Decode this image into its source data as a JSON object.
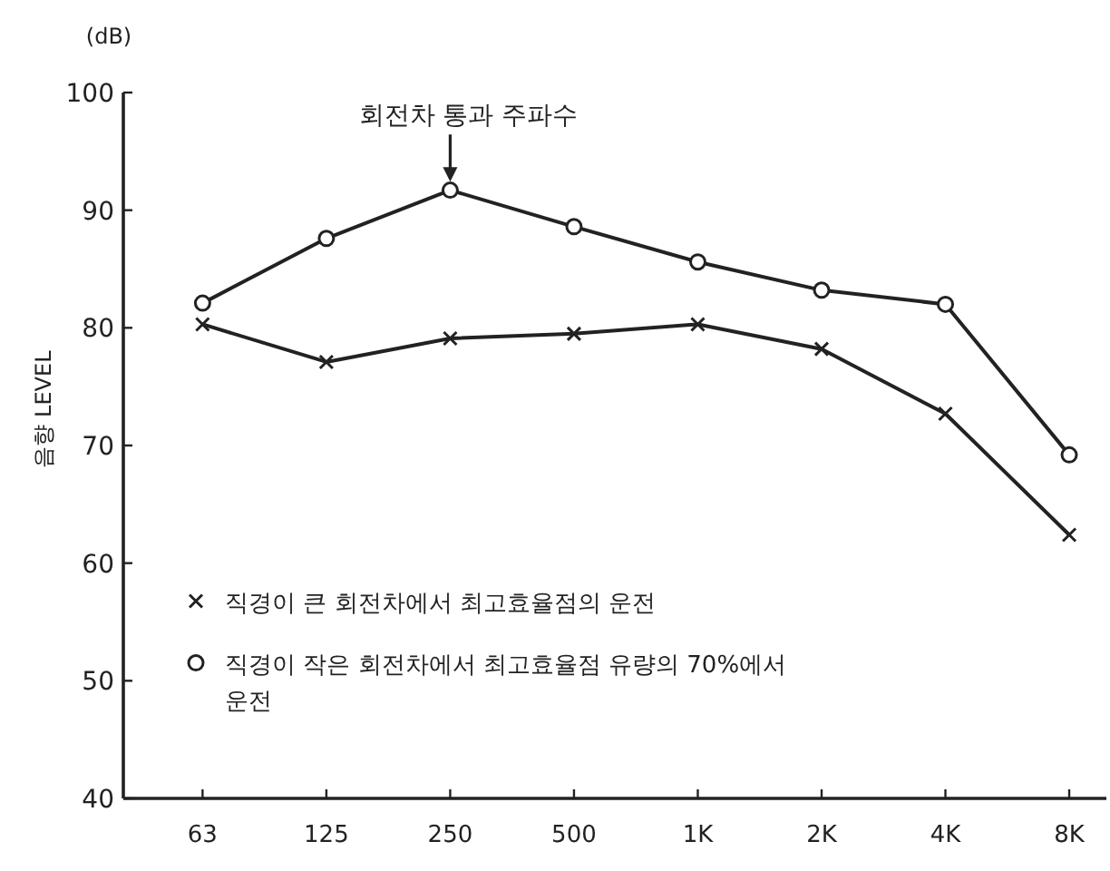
{
  "chart_data": {
    "type": "line",
    "ylabel": "음향 LEVEL",
    "categories": [
      "63",
      "125",
      "250",
      "500",
      "1K",
      "2K",
      "4K",
      "8K"
    ],
    "ylim": [
      40,
      100
    ],
    "yticks": [
      40,
      50,
      60,
      70,
      80,
      90,
      100
    ],
    "grid": false,
    "legend": "bottom left",
    "annotations": [
      "(dB)",
      {
        "text": "회전차 통과 주파수",
        "x": "250",
        "y": 91.5
      }
    ],
    "series": [
      {
        "name": "직경이 큰 회전차에서 최고효율점의 운전",
        "color": "#222222",
        "marker": "cross",
        "values": [
          80.3,
          77.1,
          79.1,
          79.5,
          80.3,
          78.2,
          72.7,
          62.4
        ]
      },
      {
        "name": "직경이 작은 회전차에서 최고효율점 유량의 70%에서 운전",
        "color": "#222222",
        "marker": "circle",
        "values": [
          82.1,
          87.6,
          91.7,
          88.6,
          85.6,
          83.2,
          82,
          69.2
        ]
      }
    ]
  }
}
